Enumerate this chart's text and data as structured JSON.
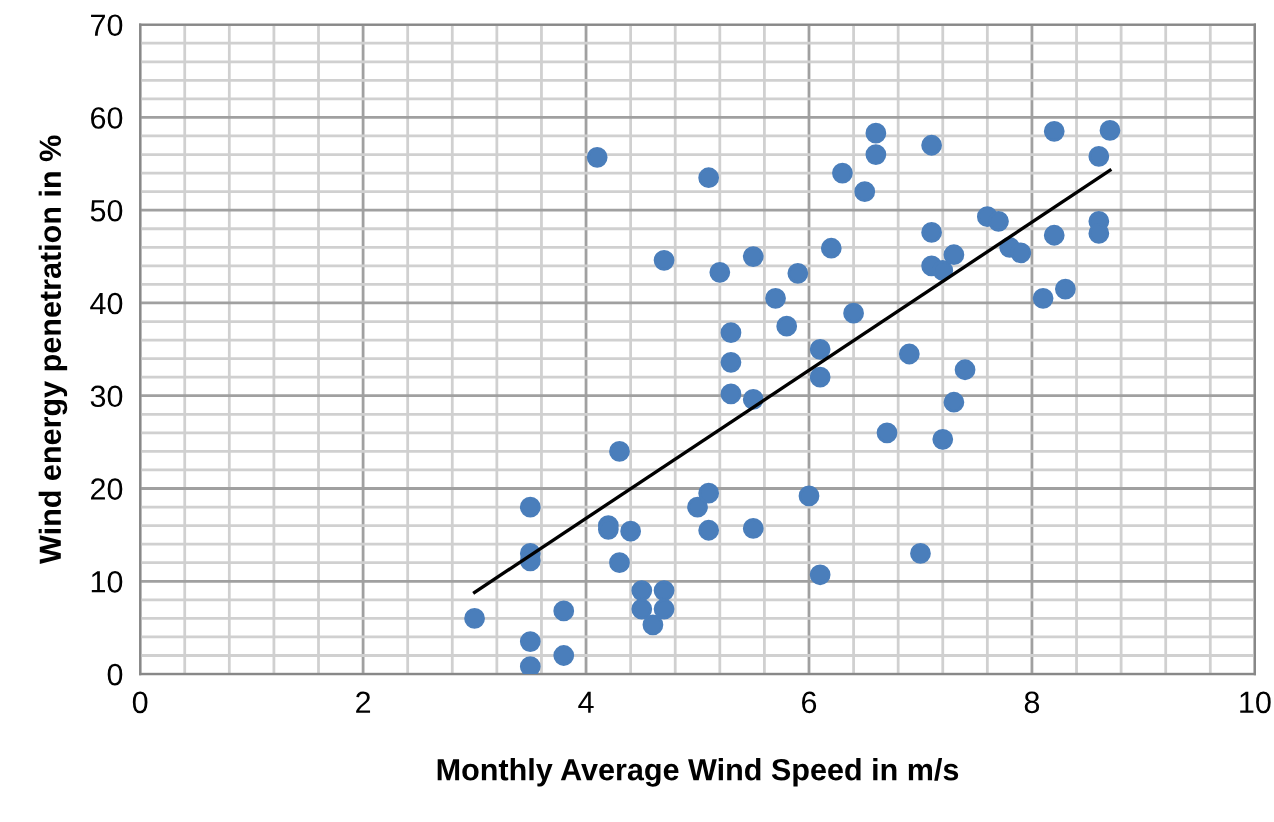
{
  "chart_data": {
    "type": "scatter",
    "xlabel": "Monthly Average Wind Speed in m/s",
    "ylabel": "Wind energy penetration in %",
    "xlim": [
      0,
      10
    ],
    "ylim": [
      0,
      70
    ],
    "xticks": [
      0,
      2,
      4,
      6,
      8,
      10
    ],
    "yticks": [
      0,
      10,
      20,
      30,
      40,
      50,
      60,
      70
    ],
    "grid": true,
    "legend": false,
    "series": [
      {
        "marker": "circle",
        "color": "#4a7ebb",
        "x": [
          3.0,
          3.5,
          3.5,
          3.5,
          3.5,
          3.5,
          3.8,
          3.8,
          4.1,
          4.2,
          4.2,
          4.3,
          4.3,
          4.4,
          4.5,
          4.5,
          4.6,
          4.7,
          4.7,
          4.7,
          5.0,
          5.1,
          5.1,
          5.1,
          5.2,
          5.3,
          5.3,
          5.3,
          5.5,
          5.5,
          5.5,
          5.7,
          5.8,
          5.9,
          6.0,
          6.1,
          6.1,
          6.1,
          6.2,
          6.3,
          6.4,
          6.5,
          6.6,
          6.6,
          6.7,
          6.9,
          7.0,
          7.1,
          7.1,
          7.1,
          7.2,
          7.2,
          7.3,
          7.3,
          7.4,
          7.6,
          7.7,
          7.8,
          7.9,
          8.1,
          8.2,
          8.2,
          8.3,
          8.6,
          8.6,
          8.6,
          8.7
        ],
        "values": [
          6,
          18,
          13,
          12.2,
          3.5,
          0.8,
          6.8,
          2,
          55.7,
          16,
          15.6,
          24,
          12,
          15.4,
          9,
          7,
          5.3,
          9,
          7,
          44.6,
          18,
          19.5,
          15.5,
          53.5,
          43.3,
          36.8,
          33.6,
          30.2,
          45,
          29.6,
          15.7,
          40.5,
          37.5,
          43.2,
          19.2,
          35,
          32,
          10.7,
          45.9,
          54,
          38.9,
          52,
          56,
          58.3,
          26,
          34.5,
          13,
          57,
          47.6,
          44,
          43.5,
          25.3,
          45.2,
          29.3,
          32.8,
          49.3,
          48.8,
          46,
          45.4,
          40.5,
          58.5,
          47.3,
          41.5,
          55.8,
          48.8,
          47.5,
          58.6
        ]
      },
      {
        "type": "line",
        "marker": "none",
        "color": "#000000",
        "x": [
          3.0,
          8.7
        ],
        "values": [
          8.8,
          54.3
        ]
      }
    ]
  }
}
